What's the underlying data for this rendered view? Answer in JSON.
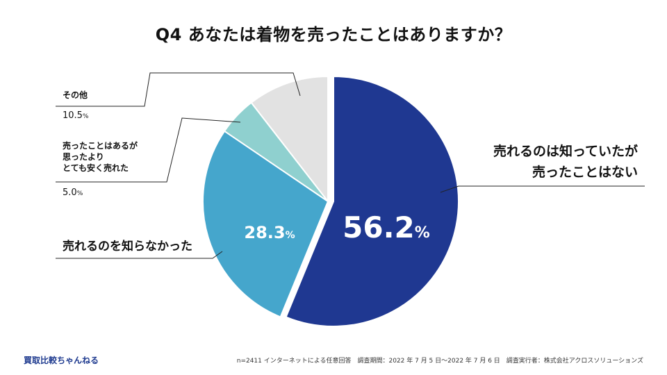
{
  "title": "Q4 あなたは着物を売ったことはありますか？",
  "brand": "買取比較ちゃんねる",
  "footnote": "n=2411 インターネットによる任意回答　調査期間：2022 年 7 月 5 日〜2022 年 7 月 6 日　調査実行者：株式会社アクロスソリューションズ",
  "chart_data": {
    "type": "pie",
    "unit": "%",
    "slices": [
      {
        "label_lines": [
          "売れるのは知っていたが",
          "売ったことはない"
        ],
        "value": 56.2,
        "value_text": "56.2",
        "color": "#1f3891"
      },
      {
        "label_lines": [
          "売れるのを知らなかった"
        ],
        "value": 28.3,
        "value_text": "28.3",
        "color": "#45a6cc"
      },
      {
        "label_lines": [
          "売ったことはあるが",
          "思ったより",
          "とても安く売れた"
        ],
        "value": 5.0,
        "value_text": "5.0",
        "color": "#8fd0cf"
      },
      {
        "label_lines": [
          "その他"
        ],
        "value": 10.5,
        "value_text": "10.5",
        "color": "#e2e2e2"
      }
    ]
  }
}
